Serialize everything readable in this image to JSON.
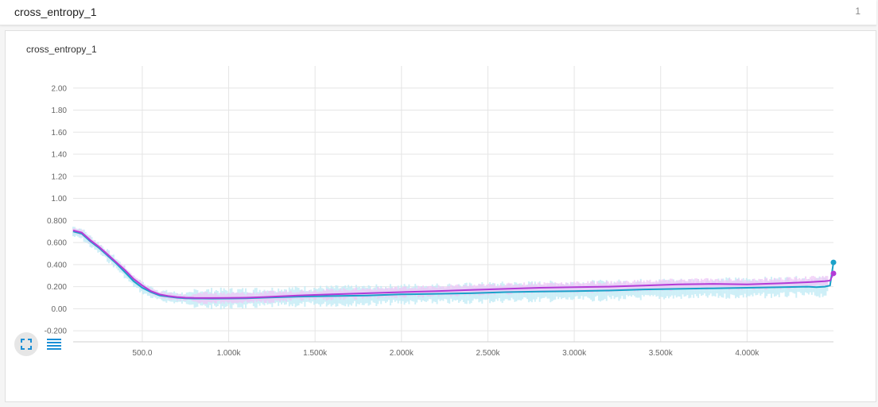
{
  "header": {
    "title": "cross_entropy_1",
    "count": "1"
  },
  "card": {
    "title": "cross_entropy_1"
  },
  "toolbar": {
    "expand_icon": "fullscreen-icon",
    "data_icon": "list-icon"
  },
  "colors": {
    "series_blue": "#1aa1c9",
    "series_magenta": "#b33bd6",
    "band_blue": "#bde9f4",
    "band_magenta": "#efc7f5",
    "grid": "#e5e5e5"
  },
  "chart_data": {
    "type": "line",
    "title": "cross_entropy_1",
    "xlim": [
      100,
      4500
    ],
    "ylim": [
      -0.3,
      2.2
    ],
    "x_ticks": [
      {
        "value": 500,
        "label": "500.0"
      },
      {
        "value": 1000,
        "label": "1.000k"
      },
      {
        "value": 1500,
        "label": "1.500k"
      },
      {
        "value": 2000,
        "label": "2.000k"
      },
      {
        "value": 2500,
        "label": "2.500k"
      },
      {
        "value": 3000,
        "label": "3.000k"
      },
      {
        "value": 3500,
        "label": "3.500k"
      },
      {
        "value": 4000,
        "label": "4.000k"
      }
    ],
    "y_ticks": [
      {
        "value": -0.2,
        "label": "-0.200"
      },
      {
        "value": 0.0,
        "label": "0.00"
      },
      {
        "value": 0.2,
        "label": "0.200"
      },
      {
        "value": 0.4,
        "label": "0.400"
      },
      {
        "value": 0.6,
        "label": "0.600"
      },
      {
        "value": 0.8,
        "label": "0.800"
      },
      {
        "value": 1.0,
        "label": "1.00"
      },
      {
        "value": 1.2,
        "label": "1.20"
      },
      {
        "value": 1.4,
        "label": "1.40"
      },
      {
        "value": 1.6,
        "label": "1.60"
      },
      {
        "value": 1.8,
        "label": "1.80"
      },
      {
        "value": 2.0,
        "label": "2.00"
      }
    ],
    "grid": true,
    "series": [
      {
        "color": "#1aa1c9",
        "x": [
          100,
          150,
          200,
          250,
          300,
          350,
          400,
          450,
          500,
          550,
          600,
          650,
          700,
          750,
          800,
          900,
          1000,
          1100,
          1200,
          1400,
          1600,
          1800,
          2000,
          2200,
          2400,
          2600,
          2800,
          3000,
          3200,
          3400,
          3600,
          3800,
          4000,
          4200,
          4350,
          4400,
          4450,
          4480,
          4500
        ],
        "values": [
          0.7,
          0.68,
          0.61,
          0.55,
          0.48,
          0.41,
          0.33,
          0.25,
          0.19,
          0.15,
          0.12,
          0.11,
          0.1,
          0.095,
          0.093,
          0.092,
          0.093,
          0.095,
          0.1,
          0.11,
          0.115,
          0.12,
          0.13,
          0.135,
          0.14,
          0.15,
          0.155,
          0.16,
          0.165,
          0.175,
          0.18,
          0.185,
          0.19,
          0.195,
          0.2,
          0.195,
          0.2,
          0.21,
          0.42
        ],
        "spread": 0.09
      },
      {
        "color": "#b33bd6",
        "x": [
          100,
          150,
          200,
          250,
          300,
          350,
          400,
          450,
          500,
          550,
          600,
          650,
          700,
          750,
          800,
          900,
          1000,
          1100,
          1200,
          1400,
          1600,
          1800,
          2000,
          2200,
          2400,
          2600,
          2800,
          3000,
          3200,
          3400,
          3600,
          3800,
          4000,
          4200,
          4350,
          4400,
          4450,
          4480,
          4500
        ],
        "values": [
          0.71,
          0.69,
          0.62,
          0.56,
          0.49,
          0.42,
          0.35,
          0.27,
          0.21,
          0.16,
          0.13,
          0.115,
          0.105,
          0.1,
          0.098,
          0.097,
          0.098,
          0.1,
          0.105,
          0.12,
          0.13,
          0.14,
          0.15,
          0.16,
          0.17,
          0.18,
          0.19,
          0.195,
          0.2,
          0.21,
          0.22,
          0.225,
          0.22,
          0.23,
          0.24,
          0.245,
          0.25,
          0.255,
          0.32
        ],
        "spread": 0.05
      }
    ]
  }
}
